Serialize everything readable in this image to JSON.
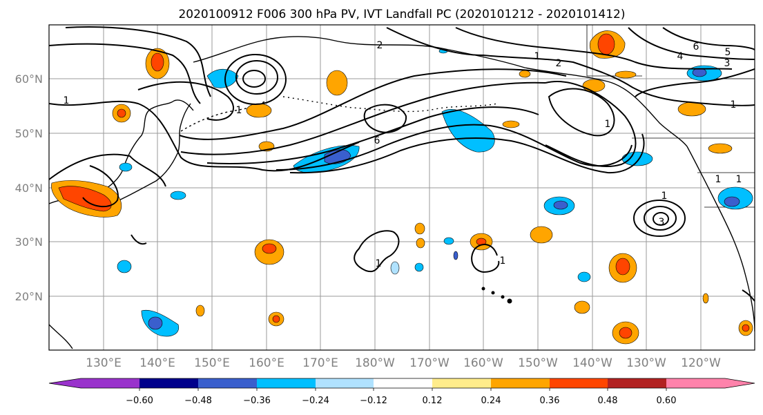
{
  "title": "2020100912 F006 300 hPa PV, IVT Landfall PC (2020101212 - 2020101412)",
  "map": {
    "lat_labels": [
      "60°N",
      "50°N",
      "40°N",
      "30°N",
      "20°N"
    ],
    "lon_labels": [
      "130°E",
      "140°E",
      "150°E",
      "160°E",
      "170°E",
      "180°W",
      "170°W",
      "160°W",
      "150°W",
      "140°W",
      "130°W",
      "120°W"
    ],
    "contour_labels": [
      "1",
      "1",
      "1",
      "1",
      "1",
      "1",
      "1",
      "2",
      "2",
      "3",
      "3",
      "4",
      "5",
      "6",
      "6",
      "1",
      "1",
      "1"
    ]
  },
  "colorbar": {
    "colors": [
      "#9932cc",
      "#00008b",
      "#3a5fcd",
      "#00bfff",
      "#b0e2ff",
      "#ffffff",
      "#ffec8b",
      "#ffa500",
      "#ff4500",
      "#b22222",
      "#ff82ab"
    ],
    "tick_labels": [
      "−0.60",
      "−0.48",
      "−0.36",
      "−0.24",
      "−0.12",
      "0.12",
      "0.24",
      "0.36",
      "0.48",
      "0.60"
    ]
  }
}
